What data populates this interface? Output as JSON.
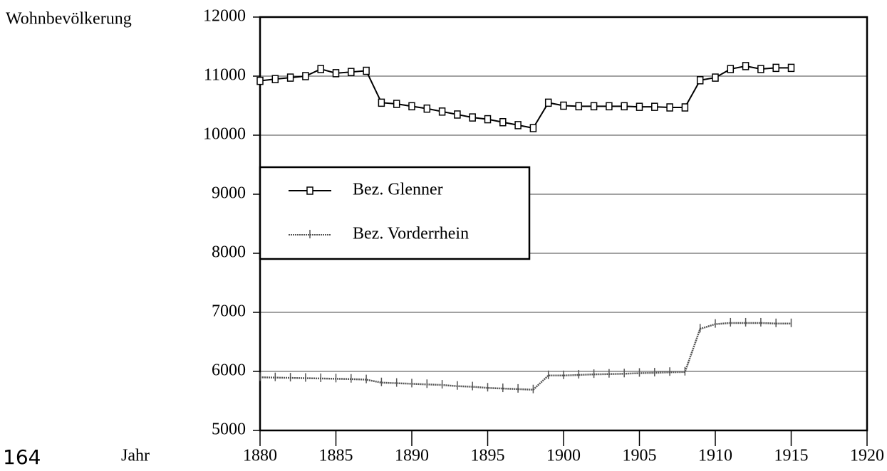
{
  "page_number": "164",
  "chart_data": {
    "type": "line",
    "ylabel": "Wohnbevölkerung",
    "xlabel": "Jahr",
    "x": [
      1880,
      1881,
      1882,
      1883,
      1884,
      1885,
      1886,
      1887,
      1888,
      1889,
      1890,
      1891,
      1892,
      1893,
      1894,
      1895,
      1896,
      1897,
      1898,
      1899,
      1900,
      1901,
      1902,
      1903,
      1904,
      1905,
      1906,
      1907,
      1908,
      1909,
      1910,
      1911,
      1912,
      1913,
      1914,
      1915
    ],
    "series": [
      {
        "name": "Bez. Glenner",
        "color": "#000000",
        "marker": "square",
        "values": [
          10920,
          10950,
          10975,
          11000,
          11120,
          11050,
          11070,
          11090,
          10550,
          10530,
          10490,
          10450,
          10400,
          10350,
          10300,
          10270,
          10220,
          10170,
          10120,
          10550,
          10500,
          10490,
          10490,
          10490,
          10490,
          10480,
          10480,
          10470,
          10470,
          10930,
          10975,
          11120,
          11170,
          11120,
          11140,
          11140
        ]
      },
      {
        "name": "Bez. Vorderrhein",
        "color": "#555555",
        "marker": "tick",
        "values": [
          5900,
          5895,
          5890,
          5885,
          5880,
          5875,
          5870,
          5860,
          5810,
          5800,
          5790,
          5780,
          5770,
          5750,
          5740,
          5720,
          5710,
          5700,
          5690,
          5930,
          5930,
          5940,
          5950,
          5955,
          5960,
          5970,
          5975,
          5985,
          5990,
          6720,
          6800,
          6820,
          6820,
          6820,
          6810,
          6810
        ]
      }
    ],
    "xlim": [
      1880,
      1920
    ],
    "xticks": [
      1880,
      1885,
      1890,
      1895,
      1900,
      1905,
      1910,
      1915,
      1920
    ],
    "ylim": [
      5000,
      12000
    ],
    "yticks": [
      5000,
      6000,
      7000,
      8000,
      9000,
      10000,
      11000,
      12000
    ],
    "grid": true,
    "legend": "left"
  }
}
